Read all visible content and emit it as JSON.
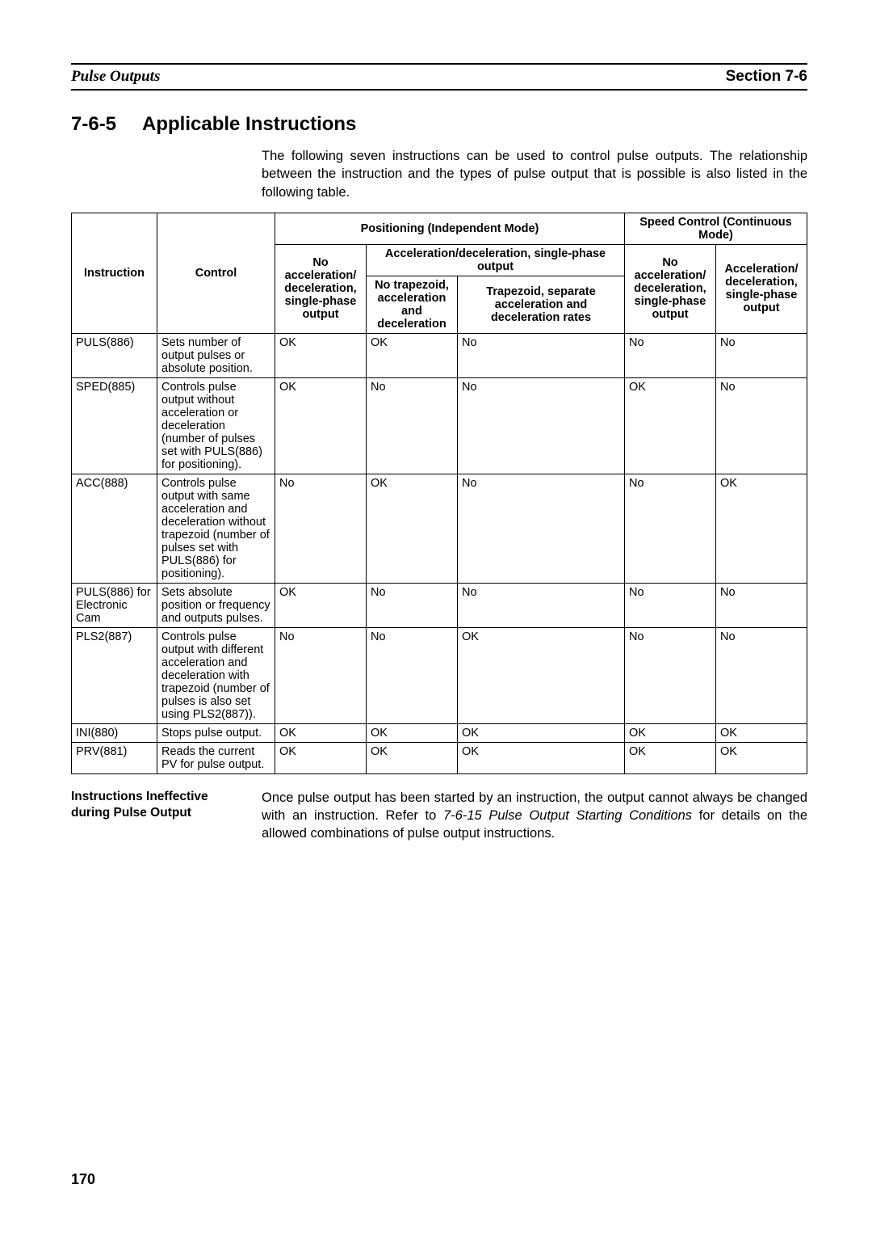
{
  "header": {
    "left": "Pulse Outputs",
    "right": "Section 7-6"
  },
  "section": {
    "number": "7-6-5",
    "title": "Applicable Instructions"
  },
  "intro": "The following seven instructions can be used to control pulse outputs. The relationship between the instruction and the types of pulse output that is possible is also listed in the following table.",
  "table": {
    "top_headers": {
      "instruction": "Instruction",
      "control": "Control",
      "positioning": "Positioning (Independent Mode)",
      "speed": "Speed Control (Continuous Mode)"
    },
    "mid_headers": {
      "pos_no_accel": "No acceleration/ deceleration, single-phase output",
      "accel_decel": "Acceleration/deceleration, single-phase output",
      "speed_no_accel": "No acceleration/ deceleration, single-phase output",
      "speed_accel": "Acceleration/ deceleration, single-phase output"
    },
    "sub_headers": {
      "no_trap": "No trapezoid, acceleration and deceleration",
      "trap": "Trapezoid, separate acceleration and deceleration rates"
    },
    "rows": [
      {
        "instr": "PULS(886)",
        "control": "Sets number of output pulses or absolute position.",
        "c1": "OK",
        "c2": "OK",
        "c3": "No",
        "c4": "No",
        "c5": "No"
      },
      {
        "instr": "SPED(885)",
        "control": "Controls pulse output without acceleration or deceleration (number of pulses set with PULS(886) for positioning).",
        "c1": "OK",
        "c2": "No",
        "c3": "No",
        "c4": "OK",
        "c5": "No"
      },
      {
        "instr": "ACC(888)",
        "control": "Controls pulse output with same acceleration and deceleration without trapezoid (number of pulses set with PULS(886) for positioning).",
        "c1": "No",
        "c2": "OK",
        "c3": "No",
        "c4": "No",
        "c5": "OK"
      },
      {
        "instr": "PULS(886) for Electronic Cam",
        "control": "Sets absolute position or frequency and outputs pulses.",
        "c1": "OK",
        "c2": "No",
        "c3": "No",
        "c4": "No",
        "c5": "No"
      },
      {
        "instr": "PLS2(887)",
        "control": "Controls pulse output with different acceleration and deceleration with trapezoid (number of pulses is also set using PLS2(887)).",
        "c1": "No",
        "c2": "No",
        "c3": "OK",
        "c4": "No",
        "c5": "No"
      },
      {
        "instr": "INI(880)",
        "control": "Stops pulse output.",
        "c1": "OK",
        "c2": "OK",
        "c3": "OK",
        "c4": "OK",
        "c5": "OK"
      },
      {
        "instr": "PRV(881)",
        "control": "Reads the current PV for pulse output.",
        "c1": "OK",
        "c2": "OK",
        "c3": "OK",
        "c4": "OK",
        "c5": "OK"
      }
    ]
  },
  "note": {
    "label": "Instructions Ineffective during Pulse Output",
    "text_pre": "Once pulse output has been started by an instruction, the output cannot always be changed with an instruction. Refer to ",
    "text_ital": "7-6-15 Pulse Output Starting Conditions",
    "text_post": " for details on the allowed combinations of pulse output instructions."
  },
  "page_number": "170"
}
